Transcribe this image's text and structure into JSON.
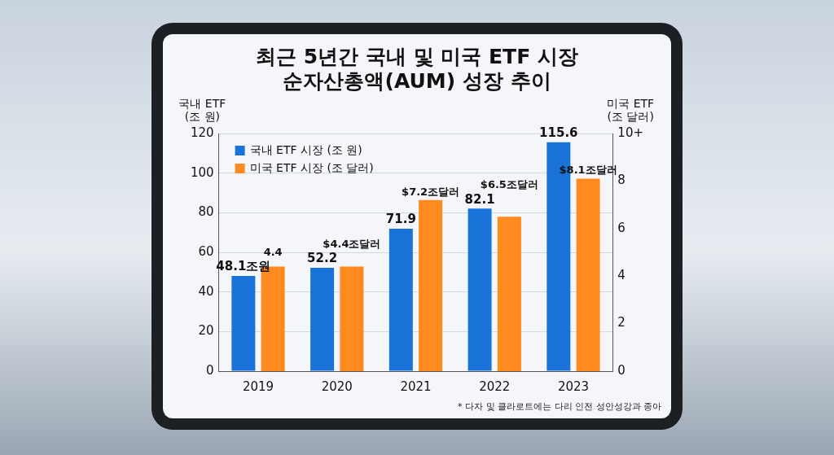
{
  "chart_data": {
    "type": "bar",
    "title": [
      "최근 5년간 국내 및 미국 ETF 시장",
      "순자산총액(AUM) 성장 추이"
    ],
    "categories": [
      "2019",
      "2020",
      "2021",
      "2022",
      "2023"
    ],
    "y_label": "국내 ETF (조 원)",
    "y2_label": "미국 ETF (조 달러)",
    "series": [
      {
        "name": "국내 ETF 시장 (조 원)",
        "color": "#1a73d9",
        "values": [
          48.1,
          52.2,
          71.9,
          82.1,
          115.6
        ],
        "value_labels": [
          "48.1조원",
          "52.2",
          "71.9",
          "82.1",
          "115.6"
        ]
      },
      {
        "name": "미국 ETF 시장 (조 달러)",
        "color": "#ff8a1f",
        "axis": "y2",
        "values": [
          4.4,
          4.4,
          7.2,
          6.5,
          8.1
        ],
        "value_labels": [
          "4.4",
          "$4.4조달러",
          "$7.2조달러",
          "$6.5조달러",
          "$8.1조달러"
        ]
      }
    ],
    "ylim": [
      0,
      120
    ],
    "yticks": [
      0,
      20,
      40,
      60,
      80,
      100,
      120
    ],
    "y2lim": [
      0,
      10
    ],
    "y2ticks": [
      0,
      2,
      4,
      6,
      8,
      {
        "value": 10,
        "label": "10+"
      }
    ],
    "grid": true,
    "legend": "upper left",
    "data_labels": true,
    "annotations": [
      "* 다자 및 클라로트에는 다리 인전 성안성강과 종아"
    ]
  }
}
